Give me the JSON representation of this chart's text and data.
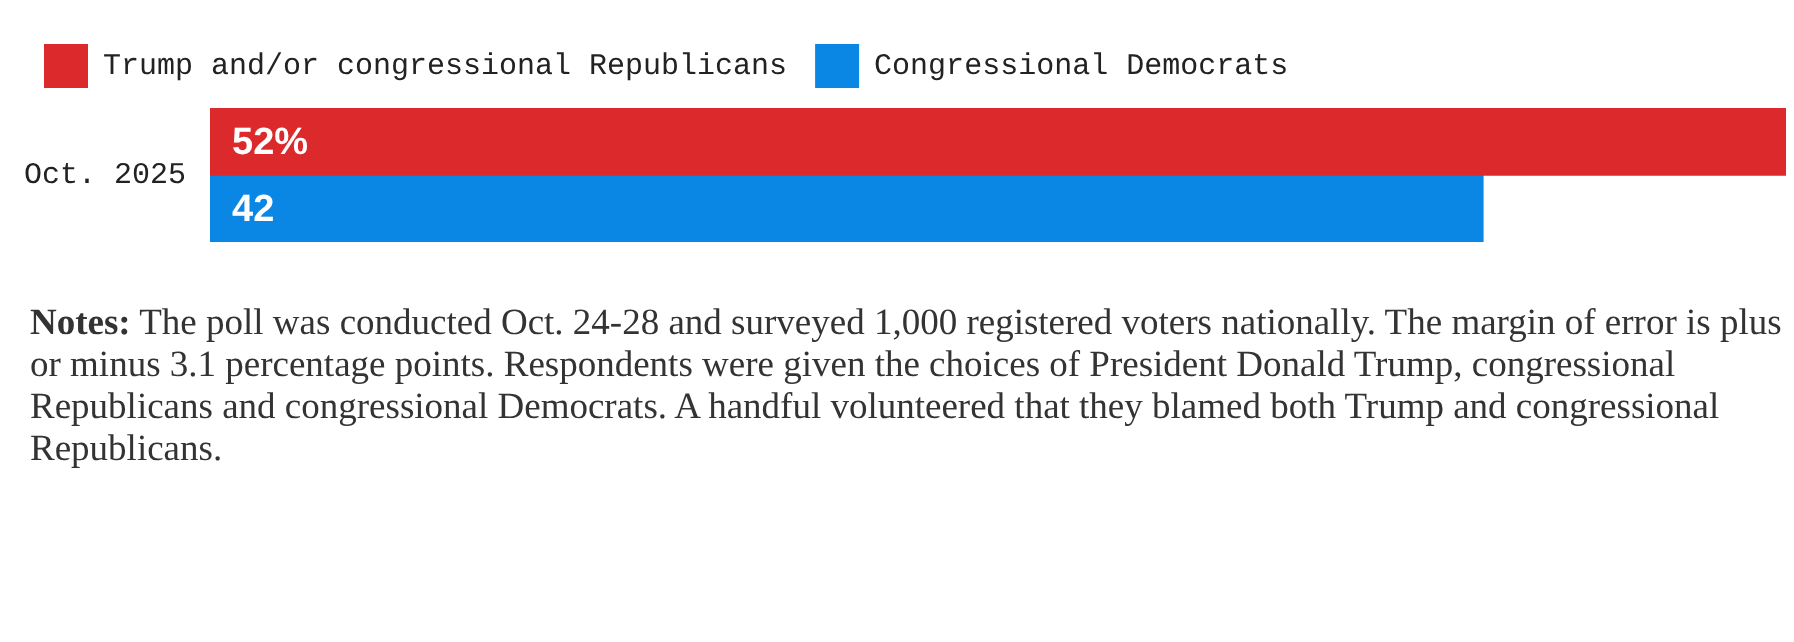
{
  "chart_data": {
    "type": "bar",
    "orientation": "horizontal",
    "categories": [
      "Oct. 2025"
    ],
    "series": [
      {
        "name": "Trump and/or congressional Republicans",
        "color": "#dc2a2c",
        "values": [
          52
        ],
        "value_labels": [
          "52%"
        ]
      },
      {
        "name": "Congressional Democrats",
        "color": "#0a86e4",
        "values": [
          42
        ],
        "value_labels": [
          "42"
        ]
      }
    ],
    "xlim": [
      0,
      52
    ],
    "legend": "top left",
    "tick_labels": "y",
    "annotations": [
      "Notes: The poll was conducted Oct. 24-28 and surveyed 1,000 registered voters nationally. The margin of error is plus or minus 3.1 percentage points. Respondents were given the choices of President Donald Trump, congressional Republicans and congressional Democrats. A handful volunteered that they blamed both Trump and congressional Republicans."
    ]
  }
}
